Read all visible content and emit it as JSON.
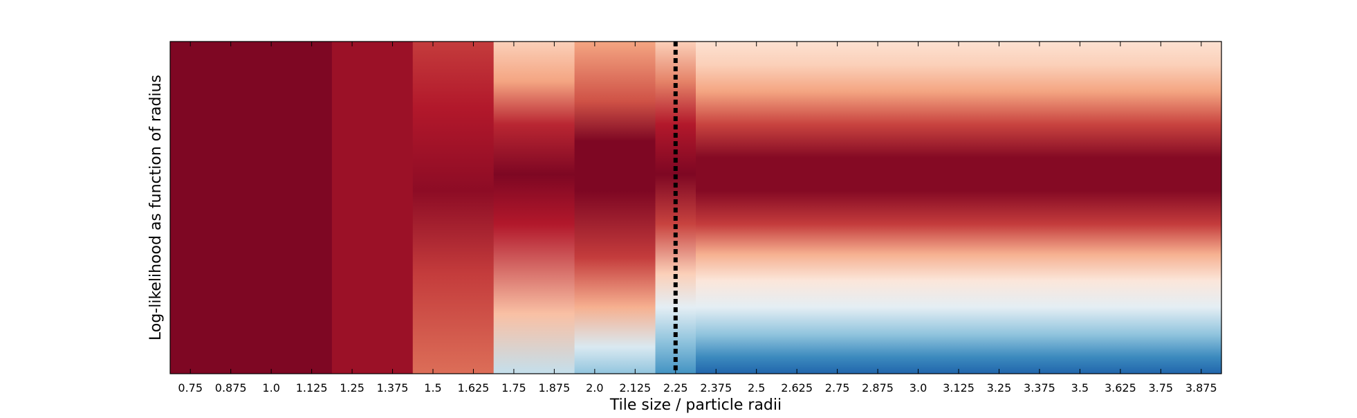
{
  "chart_data": {
    "type": "heatmap",
    "title": "",
    "xlabel": "Tile size / particle radii",
    "ylabel": "Log-likelihood as function of radius",
    "x_ticks": [
      "0.75",
      "0.875",
      "1.0",
      "1.125",
      "1.25",
      "1.375",
      "1.5",
      "1.625",
      "1.75",
      "1.875",
      "2.0",
      "2.125",
      "2.25",
      "2.375",
      "2.5",
      "2.625",
      "2.75",
      "2.875",
      "3.0",
      "3.125",
      "3.25",
      "3.375",
      "3.5",
      "3.625",
      "3.75",
      "3.875"
    ],
    "xlim": [
      0.6875,
      3.9375
    ],
    "ylim": [
      0,
      1
    ],
    "y_ticks_shown": false,
    "colormap": "RdBu_r",
    "reference_line": {
      "x": 2.25,
      "style": "dotted",
      "color": "#000000"
    },
    "columns": [
      {
        "x_start": 0.6875,
        "x_end": 1.1875,
        "profile": [
          [
            0.0,
            0.97
          ],
          [
            1.0,
            0.97
          ]
        ]
      },
      {
        "x_start": 1.1875,
        "x_end": 1.4375,
        "profile": [
          [
            0.0,
            0.93
          ],
          [
            1.0,
            0.93
          ]
        ]
      },
      {
        "x_start": 1.4375,
        "x_end": 1.6875,
        "profile": [
          [
            0.0,
            0.78
          ],
          [
            0.3,
            0.85
          ],
          [
            0.55,
            0.95
          ],
          [
            0.8,
            0.9
          ],
          [
            1.0,
            0.85
          ]
        ]
      },
      {
        "x_start": 1.6875,
        "x_end": 1.9375,
        "profile": [
          [
            0.0,
            0.38
          ],
          [
            0.18,
            0.65
          ],
          [
            0.45,
            0.9
          ],
          [
            0.6,
            0.97
          ],
          [
            0.75,
            0.88
          ],
          [
            0.88,
            0.7
          ],
          [
            1.0,
            0.62
          ]
        ]
      },
      {
        "x_start": 1.9375,
        "x_end": 2.1875,
        "profile": [
          [
            0.0,
            0.3
          ],
          [
            0.08,
            0.42
          ],
          [
            0.2,
            0.68
          ],
          [
            0.35,
            0.85
          ],
          [
            0.55,
            0.97
          ],
          [
            0.7,
            0.97
          ],
          [
            0.82,
            0.82
          ],
          [
            1.0,
            0.7
          ]
        ]
      },
      {
        "x_start": 2.1875,
        "x_end": 2.3125,
        "profile": [
          [
            0.0,
            0.2
          ],
          [
            0.1,
            0.3
          ],
          [
            0.2,
            0.45
          ],
          [
            0.3,
            0.62
          ],
          [
            0.45,
            0.84
          ],
          [
            0.6,
            0.97
          ],
          [
            0.75,
            0.9
          ],
          [
            0.88,
            0.75
          ],
          [
            1.0,
            0.62
          ]
        ]
      },
      {
        "x_start": 2.3125,
        "x_end": 3.9375,
        "profile": [
          [
            0.0,
            0.1
          ],
          [
            0.05,
            0.18
          ],
          [
            0.12,
            0.3
          ],
          [
            0.2,
            0.45
          ],
          [
            0.28,
            0.56
          ],
          [
            0.36,
            0.68
          ],
          [
            0.45,
            0.85
          ],
          [
            0.55,
            0.96
          ],
          [
            0.65,
            0.96
          ],
          [
            0.75,
            0.84
          ],
          [
            0.85,
            0.7
          ],
          [
            0.93,
            0.62
          ],
          [
            1.0,
            0.58
          ]
        ]
      }
    ]
  }
}
